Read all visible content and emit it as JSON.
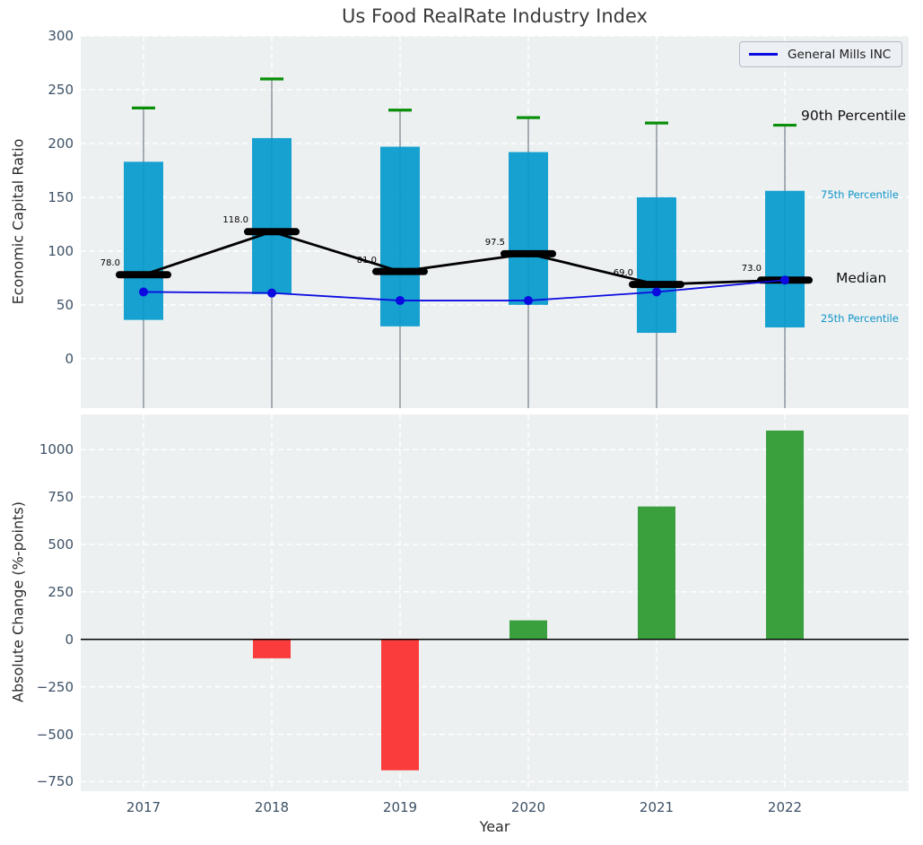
{
  "figure_title": "Us Food RealRate Industry Index",
  "colors": {
    "box_fill": "#049acd",
    "whisker_cap_green": "#0a8f0a",
    "whisker_line_gray": "#6e7a84",
    "median_black": "#000000",
    "company_line_blue": "#0b0be0",
    "bar_positive_green": "#3aa03e",
    "bar_negative_red": "#fa3c3c",
    "plot_background": "#edf0f1",
    "grid_white": "#ffffff",
    "tick_label": "#3d5166",
    "percentile_label_blue": "#0d95c8"
  },
  "chart_data": [
    {
      "type": "box",
      "title": "Us Food RealRate Industry Index",
      "ylabel": "Economic Capital Ratio",
      "categories": [
        "2017",
        "2018",
        "2019",
        "2020",
        "2021",
        "2022"
      ],
      "ylim": [
        -46,
        300
      ],
      "yticks": [
        0,
        50,
        100,
        150,
        200,
        250,
        300
      ],
      "ytick_labels": [
        "0",
        "50",
        "100",
        "150",
        "200",
        "250",
        "300"
      ],
      "grid": "white-dashed",
      "legend": {
        "label": "General Mills INC",
        "position": "upper right"
      },
      "boxes": {
        "p90": [
          233,
          260,
          231,
          224,
          219,
          217
        ],
        "p75": [
          183,
          205,
          197,
          192,
          150,
          156
        ],
        "median": [
          78,
          118,
          81,
          97.5,
          69,
          73
        ],
        "p25": [
          36,
          60,
          30,
          50,
          24,
          29
        ],
        "whisker_low": "extends below visible axis"
      },
      "median_labels": [
        "78.0",
        "118.0",
        "81.0",
        "97.5",
        "69.0",
        "73.0"
      ],
      "series": [
        {
          "name": "General Mills INC",
          "values": [
            62,
            61,
            54,
            54,
            62,
            73
          ]
        }
      ],
      "annotations": {
        "p90": "90th Percentile",
        "p75": "75th Percentile",
        "median": "Median",
        "p25": "25th Percentile"
      }
    },
    {
      "type": "bar",
      "ylabel": "Absolute Change (%-points)",
      "xlabel": "Year",
      "categories": [
        "2017",
        "2018",
        "2019",
        "2020",
        "2021",
        "2022"
      ],
      "values": [
        0,
        -100,
        -690,
        100,
        700,
        1100
      ],
      "ylim": [
        -800,
        1185
      ],
      "yticks": [
        -750,
        -500,
        -250,
        0,
        250,
        500,
        750,
        1000
      ],
      "ytick_labels": [
        "−750",
        "−500",
        "−250",
        "0",
        "250",
        "500",
        "750",
        "1000"
      ],
      "grid": "white-dashed",
      "zero_line": true
    }
  ]
}
